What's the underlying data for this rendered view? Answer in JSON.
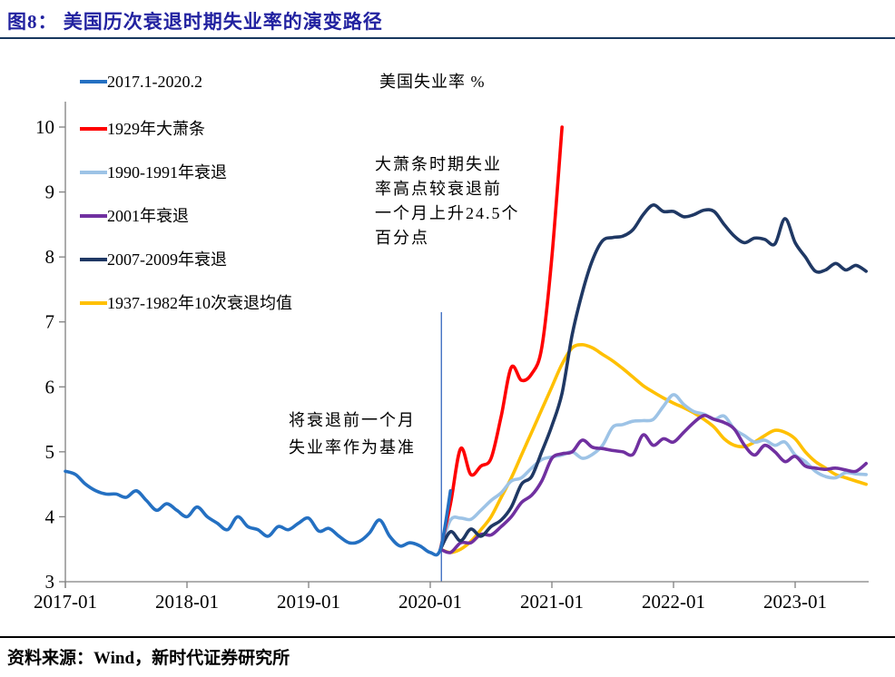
{
  "header": {
    "title": "图8：  美国历次衰退时期失业率的演变路径"
  },
  "chart": {
    "title": "美国失业率 %"
  },
  "annotations": {
    "depression": {
      "lines": [
        "大萧条时期失业",
        "率高点较衰退前",
        "一个月上升24.5个",
        "百分点"
      ]
    },
    "baseline": {
      "lines": [
        "将衰退前一个月",
        "失业率作为基准"
      ]
    }
  },
  "footer": {
    "source": "资料来源：Wind，新时代证券研究所"
  },
  "colors": {
    "title_blue": "#2222A0",
    "axis_gray": "#808080",
    "marker_line": "#4472C4",
    "rule_top": "#17375E",
    "rule_bottom": "#000000"
  },
  "chart_data": {
    "type": "line",
    "title": "美国失业率 %",
    "ylabel": "失业率 %",
    "ylim": [
      3,
      10
    ],
    "yticks": [
      3,
      4,
      5,
      6,
      7,
      8,
      9,
      10
    ],
    "x_unit": "months since 2017-01",
    "xtick_months": [
      0,
      12,
      24,
      36,
      48,
      60,
      72
    ],
    "xtick_labels": [
      "2017-01",
      "2018-01",
      "2019-01",
      "2020-01",
      "2021-01",
      "2022-01",
      "2023-01"
    ],
    "grid": false,
    "legend_position": "upper-left",
    "baseline_marker": {
      "month": 37.1,
      "from_value": 3.0,
      "to_value": 7.15,
      "color": "#4472C4"
    },
    "draw_order": [
      5,
      2,
      3,
      4,
      1,
      0
    ],
    "series": [
      {
        "label": "2017.1-2020.2",
        "color": "#2470C2",
        "start_month": 0,
        "values": [
          4.7,
          4.65,
          4.5,
          4.4,
          4.35,
          4.35,
          4.3,
          4.4,
          4.25,
          4.1,
          4.2,
          4.1,
          4.0,
          4.15,
          4.0,
          3.9,
          3.8,
          4.0,
          3.85,
          3.8,
          3.7,
          3.85,
          3.8,
          3.9,
          3.98,
          3.78,
          3.82,
          3.7,
          3.6,
          3.62,
          3.75,
          3.95,
          3.7,
          3.55,
          3.6,
          3.55,
          3.45,
          3.5,
          4.4
        ]
      },
      {
        "label": "1929年大萧条",
        "color": "#FF0000",
        "start_month": 37,
        "values": [
          3.5,
          4.2,
          5.05,
          4.65,
          4.78,
          4.9,
          5.55,
          6.3,
          6.1,
          6.2,
          6.6,
          8.0,
          10.0
        ]
      },
      {
        "label": "1990-1991年衰退",
        "color": "#9DC3E6",
        "start_month": 37,
        "values": [
          3.5,
          3.95,
          3.98,
          3.96,
          4.1,
          4.25,
          4.37,
          4.55,
          4.6,
          4.75,
          4.88,
          4.92,
          4.95,
          5.0,
          4.9,
          4.96,
          5.1,
          5.38,
          5.42,
          5.47,
          5.48,
          5.5,
          5.7,
          5.88,
          5.73,
          5.62,
          5.58,
          5.5,
          5.55,
          5.35,
          5.25,
          5.15,
          5.18,
          5.1,
          5.15,
          4.95,
          4.85,
          4.7,
          4.62,
          4.6,
          4.68,
          4.66,
          4.65
        ]
      },
      {
        "label": "2001年衰退",
        "color": "#7030A0",
        "start_month": 37,
        "values": [
          3.5,
          3.45,
          3.6,
          3.6,
          3.73,
          3.72,
          3.85,
          4.0,
          4.22,
          4.33,
          4.55,
          4.9,
          4.97,
          5.0,
          5.18,
          5.07,
          5.05,
          5.02,
          5.0,
          4.96,
          5.26,
          5.1,
          5.2,
          5.15,
          5.3,
          5.45,
          5.56,
          5.5,
          5.45,
          5.35,
          5.1,
          4.95,
          5.1,
          5.0,
          4.85,
          4.93,
          4.78,
          4.75,
          4.73,
          4.75,
          4.72,
          4.7,
          4.82
        ]
      },
      {
        "label": "2007-2009年衰退",
        "color": "#1F3864",
        "start_month": 37,
        "values": [
          3.5,
          3.77,
          3.63,
          3.81,
          3.7,
          3.85,
          3.95,
          4.15,
          4.5,
          4.62,
          5.0,
          5.4,
          5.9,
          6.8,
          7.45,
          7.95,
          8.25,
          8.3,
          8.32,
          8.42,
          8.65,
          8.8,
          8.7,
          8.7,
          8.62,
          8.65,
          8.72,
          8.7,
          8.5,
          8.32,
          8.22,
          8.29,
          8.27,
          8.2,
          8.59,
          8.22,
          8.0,
          7.78,
          7.8,
          7.9,
          7.8,
          7.87,
          7.78
        ]
      },
      {
        "label": "1937-1982年10次衰退均值",
        "color": "#FFC000",
        "start_month": 37,
        "values": [
          3.5,
          3.45,
          3.5,
          3.62,
          3.8,
          4.0,
          4.3,
          4.6,
          4.95,
          5.3,
          5.65,
          6.0,
          6.35,
          6.6,
          6.65,
          6.6,
          6.5,
          6.4,
          6.28,
          6.15,
          6.02,
          5.92,
          5.83,
          5.75,
          5.68,
          5.6,
          5.5,
          5.38,
          5.2,
          5.1,
          5.08,
          5.15,
          5.25,
          5.33,
          5.3,
          5.2,
          5.0,
          4.85,
          4.75,
          4.65,
          4.6,
          4.55,
          4.5
        ]
      }
    ]
  }
}
